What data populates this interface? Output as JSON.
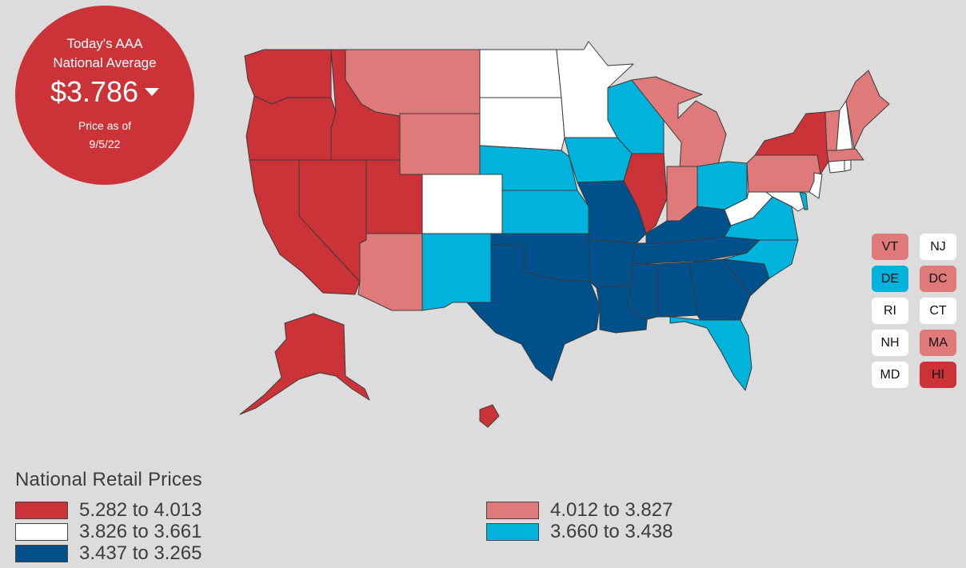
{
  "badge": {
    "title_line1": "Today's AAA",
    "title_line2": "National Average",
    "price": "$3.786",
    "trend": "down",
    "asof_line1": "Price as of",
    "asof_line2": "9/5/22"
  },
  "colors": {
    "tier1": "#cc3338",
    "tier2": "#e07a7a",
    "tier3": "#ffffff",
    "tier4": "#00b3dc",
    "tier5": "#00508c"
  },
  "small_states": [
    {
      "code": "VT",
      "tier": "tier2"
    },
    {
      "code": "NJ",
      "tier": "tier3"
    },
    {
      "code": "DE",
      "tier": "tier4"
    },
    {
      "code": "DC",
      "tier": "tier2"
    },
    {
      "code": "RI",
      "tier": "tier3"
    },
    {
      "code": "CT",
      "tier": "tier3"
    },
    {
      "code": "NH",
      "tier": "tier3"
    },
    {
      "code": "MA",
      "tier": "tier2"
    },
    {
      "code": "MD",
      "tier": "tier3"
    },
    {
      "code": "HI",
      "tier": "tier1"
    }
  ],
  "legend": {
    "title": "National Retail Prices",
    "items": [
      {
        "label": "5.282 to 4.013",
        "tier": "tier1"
      },
      {
        "label": "3.826 to 3.661",
        "tier": "tier3"
      },
      {
        "label": "3.437 to 3.265",
        "tier": "tier5"
      },
      {
        "label": "4.012 to 3.827",
        "tier": "tier2"
      },
      {
        "label": "3.660 to 3.438",
        "tier": "tier4"
      }
    ]
  },
  "states": {
    "WA": "tier1",
    "OR": "tier1",
    "CA": "tier1",
    "NV": "tier1",
    "ID": "tier1",
    "UT": "tier1",
    "AK": "tier1",
    "HI": "tier1",
    "IL": "tier1",
    "NY": "tier1",
    "MT": "tier2",
    "WY": "tier2",
    "AZ": "tier2",
    "MI": "tier2",
    "IN": "tier2",
    "PA": "tier2",
    "ME": "tier2",
    "VT": "tier2",
    "MA": "tier2",
    "ND": "tier3",
    "SD": "tier3",
    "MN": "tier3",
    "CO": "tier3",
    "WV": "tier3",
    "NH": "tier3",
    "NJ": "tier3",
    "CT": "tier3",
    "RI": "tier3",
    "MD": "tier3",
    "NE": "tier4",
    "KS": "tier4",
    "IA": "tier4",
    "WI": "tier4",
    "NM": "tier4",
    "OH": "tier4",
    "VA": "tier4",
    "NC": "tier4",
    "FL": "tier4",
    "DE": "tier4",
    "OK": "tier5",
    "TX": "tier5",
    "MO": "tier5",
    "AR": "tier5",
    "LA": "tier5",
    "MS": "tier5",
    "AL": "tier5",
    "GA": "tier5",
    "SC": "tier5",
    "TN": "tier5",
    "KY": "tier5"
  }
}
